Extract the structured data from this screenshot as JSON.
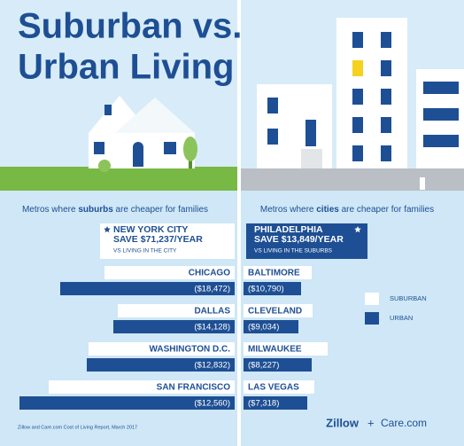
{
  "title_line1": "Suburban vs.",
  "title_line2": "Urban Living",
  "chart_data": [
    {
      "type": "bar",
      "orientation": "horizontal",
      "title_before": "Metros where ",
      "title_emphasis": "suburbs",
      "title_after": " are cheaper for families",
      "highlight": {
        "city": "NEW YORK CITY",
        "saving": "SAVE $71,237/YEAR",
        "note": "VS LIVING IN THE CITY"
      },
      "categories": [
        "CHICAGO",
        "DALLAS",
        "WASHINGTON D.C.",
        "SAN FRANCISCO"
      ],
      "values": [
        18472,
        14128,
        12832,
        12560
      ],
      "value_labels": [
        "($18,472)",
        "($14,128)",
        "($12,832)",
        "($12,560)"
      ],
      "xlim": [
        0,
        250
      ],
      "series": [
        {
          "color": "#ffffff",
          "values": [
            147,
            132,
            165,
            210
          ]
        },
        {
          "color": "#1e4f94",
          "values": [
            197,
            137,
            167,
            243
          ]
        }
      ]
    },
    {
      "type": "bar",
      "orientation": "horizontal",
      "title_before": "Metros where ",
      "title_emphasis": "cities",
      "title_after": " are cheaper for families",
      "highlight": {
        "city": "PHILADELPHIA",
        "saving": "SAVE $13,849/YEAR",
        "note": "VS LIVING IN THE SUBURBS"
      },
      "categories": [
        "BALTIMORE",
        "CLEVELAND",
        "MILWAUKEE",
        "LAS VEGAS"
      ],
      "values": [
        10790,
        9034,
        8227,
        7318
      ],
      "value_labels": [
        "($10,790)",
        "($9,034)",
        "($8,227)",
        "($7,318)"
      ],
      "xlim": [
        0,
        250
      ],
      "series": [
        {
          "name": "SUBURBAN",
          "color": "#ffffff",
          "values": [
            77,
            78,
            95,
            80
          ]
        },
        {
          "name": "URBAN",
          "color": "#1e4f94",
          "values": [
            65,
            62,
            77,
            72
          ]
        }
      ]
    }
  ],
  "source": "Zillow and Care.com Cost of Living Report, March 2017",
  "logos": {
    "zillow": "Zillow",
    "plus": "+",
    "care": "Care.com"
  }
}
